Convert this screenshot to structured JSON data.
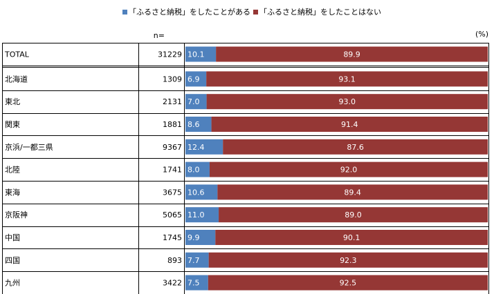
{
  "chart_data": {
    "type": "bar",
    "stacked": true,
    "orientation": "horizontal",
    "unit_label": "(%)",
    "n_label": "n=",
    "legend_position": "top",
    "series": [
      {
        "name": "「ふるさと納税」をしたことがある",
        "color": "#4f81bd",
        "values": [
          10.1,
          6.9,
          7.0,
          8.6,
          12.4,
          8.0,
          10.6,
          11.0,
          9.9,
          7.7,
          7.5
        ]
      },
      {
        "name": "「ふるさと納税」をしたことはない",
        "color": "#953735",
        "values": [
          89.9,
          93.1,
          93.0,
          91.4,
          87.6,
          92.0,
          89.4,
          89.0,
          90.1,
          92.3,
          92.5
        ]
      }
    ],
    "categories": [
      "TOTAL",
      "北海道",
      "東北",
      "関東",
      "京浜/一都三県",
      "北陸",
      "東海",
      "京阪神",
      "中国",
      "四国",
      "九州"
    ],
    "n": [
      31229,
      1309,
      2131,
      1881,
      9367,
      1741,
      3675,
      5065,
      1745,
      893,
      3422
    ],
    "xlim": [
      0,
      100
    ]
  }
}
